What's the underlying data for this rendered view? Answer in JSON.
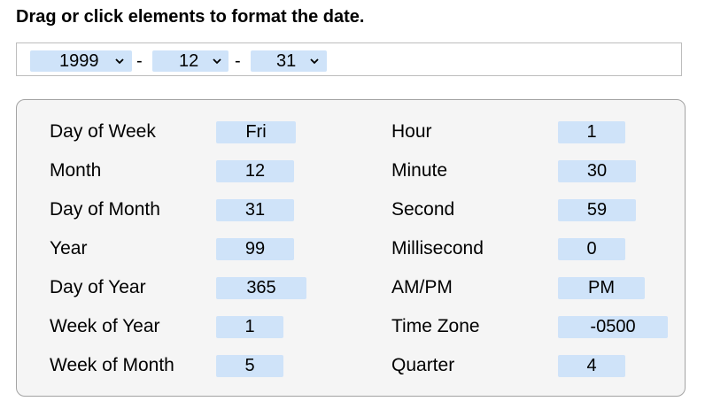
{
  "title": "Drag or click elements to format the date.",
  "format_bar": {
    "year": "1999",
    "sep1": "-",
    "month": "12",
    "sep2": "-",
    "day": "31"
  },
  "panel": {
    "left": [
      {
        "label": "Day of Week",
        "value": "Fri"
      },
      {
        "label": "Month",
        "value": "12"
      },
      {
        "label": "Day of Month",
        "value": "31"
      },
      {
        "label": "Year",
        "value": "99"
      },
      {
        "label": "Day of Year",
        "value": "365"
      },
      {
        "label": "Week of Year",
        "value": "1"
      },
      {
        "label": "Week of Month",
        "value": "5"
      }
    ],
    "right": [
      {
        "label": "Hour",
        "value": "1"
      },
      {
        "label": "Minute",
        "value": "30"
      },
      {
        "label": "Second",
        "value": "59"
      },
      {
        "label": "Millisecond",
        "value": "0"
      },
      {
        "label": "AM/PM",
        "value": "PM"
      },
      {
        "label": "Time Zone",
        "value": "-0500"
      },
      {
        "label": "Quarter",
        "value": "4"
      }
    ]
  },
  "colors": {
    "chip_bg": "#cfe3f9",
    "panel_bg": "#f5f5f5",
    "panel_border": "#a3a3a3"
  }
}
